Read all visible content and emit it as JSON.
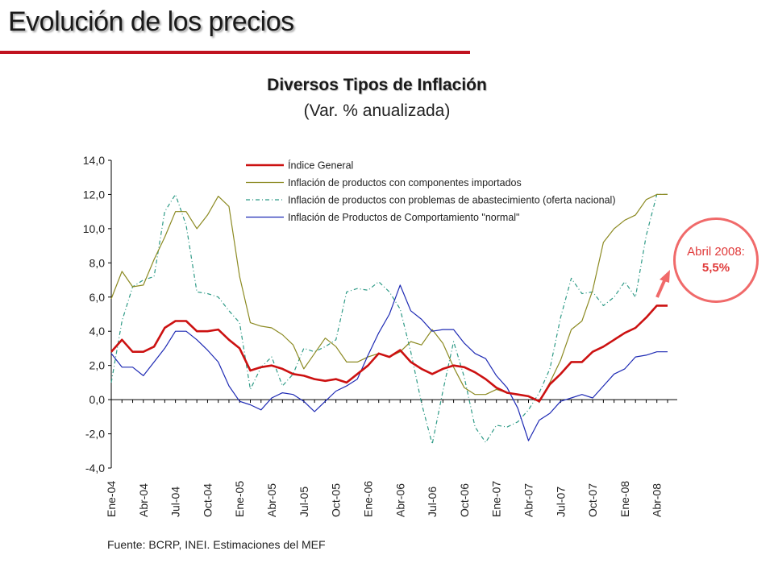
{
  "slide": {
    "title": "Evolución de los precios",
    "source_note": "Fuente: BCRP, INEI.  Estimaciones del MEF"
  },
  "callout": {
    "label": "Abril 2008:",
    "value": "5,5%"
  },
  "colors": {
    "rule": "#c0121f",
    "general": "#cc1111",
    "importados": "#8c8a22",
    "abastecimiento": "#2e9a86",
    "normal": "#1e2ab4",
    "callout": "#f06a6a"
  },
  "chart_data": {
    "type": "line",
    "title": "Diversos Tipos de Inflación",
    "subtitle": "(Var. % anualizada)",
    "xlabel": "",
    "ylabel": "",
    "ylim": [
      -4,
      14
    ],
    "yticks": [
      "14,0",
      "12,0",
      "10,0",
      "8,0",
      "6,0",
      "4,0",
      "2,0",
      "0,0",
      "-2,0",
      "-4,0"
    ],
    "x_labels": [
      "Ene-04",
      "Abr-04",
      "Jul-04",
      "Oct-04",
      "Ene-05",
      "Abr-05",
      "Jul-05",
      "Oct-05",
      "Ene-06",
      "Abr-06",
      "Jul-06",
      "Oct-06",
      "Ene-07",
      "Abr-07",
      "Jul-07",
      "Oct-07",
      "Ene-08",
      "Abr-08"
    ],
    "label_every": 3,
    "legend_position": "top-left",
    "series": [
      {
        "name": "Índice General",
        "style": "general",
        "values": [
          2.8,
          3.5,
          2.8,
          2.8,
          3.1,
          4.2,
          4.6,
          4.6,
          4.0,
          4.0,
          4.1,
          3.5,
          3.0,
          1.7,
          1.9,
          2.0,
          1.8,
          1.5,
          1.4,
          1.2,
          1.1,
          1.2,
          1.0,
          1.5,
          2.0,
          2.7,
          2.5,
          2.9,
          2.2,
          1.8,
          1.5,
          1.8,
          2.0,
          1.9,
          1.6,
          1.2,
          0.7,
          0.4,
          0.3,
          0.2,
          -0.1,
          0.9,
          1.5,
          2.2,
          2.2,
          2.8,
          3.1,
          3.5,
          3.9,
          4.2,
          4.8,
          5.5,
          5.5
        ]
      },
      {
        "name": "Inflación de productos con componentes importados",
        "style": "importados",
        "values": [
          5.9,
          7.5,
          6.6,
          6.7,
          8.2,
          9.5,
          11.0,
          11.0,
          10.0,
          10.8,
          11.9,
          11.3,
          7.2,
          4.5,
          4.3,
          4.2,
          3.8,
          3.2,
          1.8,
          2.7,
          3.6,
          3.1,
          2.2,
          2.2,
          2.5,
          2.7,
          2.5,
          2.8,
          3.4,
          3.2,
          4.1,
          3.3,
          1.9,
          0.7,
          0.3,
          0.3,
          0.6,
          0.4,
          0.3,
          0.2,
          -0.1,
          1.0,
          2.3,
          4.1,
          4.6,
          6.4,
          9.2,
          10.0,
          10.5,
          10.8,
          11.7,
          12.0,
          12.0
        ]
      },
      {
        "name": "Inflación de productos con problemas de abastecimiento (oferta nacional)",
        "style": "abastecimiento",
        "values": [
          1.0,
          4.6,
          6.6,
          7.0,
          7.2,
          11.0,
          12.0,
          10.2,
          6.3,
          6.2,
          6.0,
          5.2,
          4.5,
          0.6,
          1.9,
          2.5,
          0.8,
          1.5,
          3.0,
          2.8,
          3.1,
          3.5,
          6.3,
          6.5,
          6.4,
          6.9,
          6.3,
          5.3,
          2.8,
          -0.2,
          -2.6,
          0.5,
          3.4,
          1.3,
          -1.6,
          -2.5,
          -1.5,
          -1.6,
          -1.3,
          -0.6,
          0.4,
          1.8,
          4.8,
          7.1,
          6.2,
          6.3,
          5.5,
          6.0,
          6.9,
          6.0,
          9.6,
          12.0,
          12.0
        ]
      },
      {
        "name": "Inflación de Productos de Comportamiento \"normal\"",
        "style": "normal",
        "values": [
          2.7,
          1.9,
          1.9,
          1.4,
          2.2,
          3.0,
          4.0,
          4.0,
          3.5,
          2.9,
          2.2,
          0.8,
          -0.1,
          -0.3,
          -0.6,
          0.1,
          0.4,
          0.3,
          -0.1,
          -0.7,
          -0.1,
          0.5,
          0.8,
          1.2,
          2.6,
          3.9,
          5.0,
          6.7,
          5.2,
          4.7,
          4.0,
          4.1,
          4.1,
          3.3,
          2.7,
          2.4,
          1.4,
          0.7,
          -0.5,
          -2.4,
          -1.2,
          -0.8,
          -0.1,
          0.1,
          0.3,
          0.1,
          0.8,
          1.5,
          1.8,
          2.5,
          2.6,
          2.8,
          2.8
        ]
      }
    ]
  }
}
